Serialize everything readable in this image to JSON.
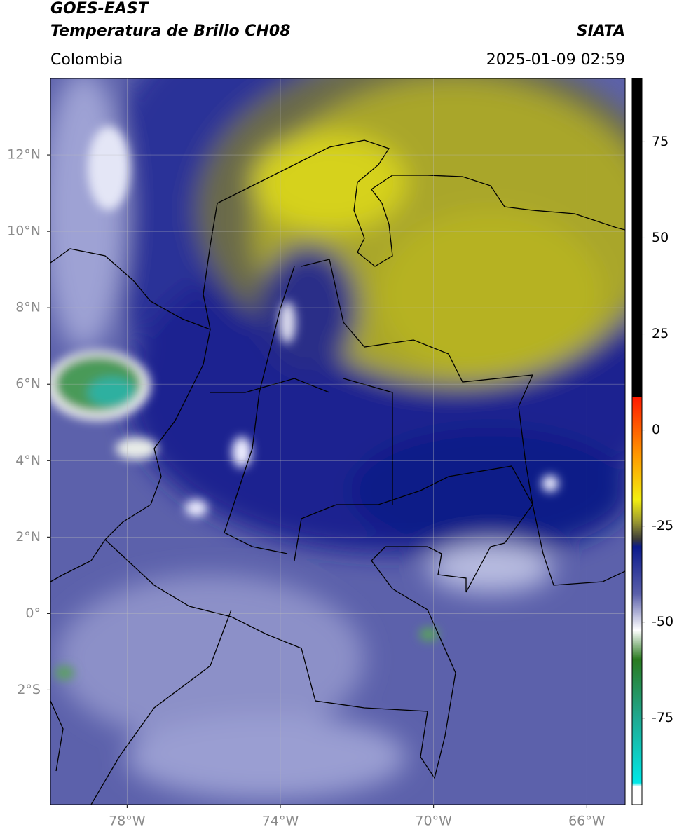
{
  "header": {
    "satellite": "GOES-EAST",
    "product": "Temperatura de Brillo CH08",
    "source": "SIATA",
    "region": "Colombia",
    "timestamp": "2025-01-09 02:59"
  },
  "map": {
    "xlim": [
      -80,
      -65
    ],
    "ylim": [
      -5,
      14
    ],
    "xticks": [
      {
        "value": -78,
        "label": "78°W"
      },
      {
        "value": -74,
        "label": "74°W"
      },
      {
        "value": -70,
        "label": "70°W"
      },
      {
        "value": -66,
        "label": "66°W"
      }
    ],
    "yticks": [
      {
        "value": 12,
        "label": "12°N"
      },
      {
        "value": 10,
        "label": "10°N"
      },
      {
        "value": 8,
        "label": "8°N"
      },
      {
        "value": 6,
        "label": "6°N"
      },
      {
        "value": 4,
        "label": "4°N"
      },
      {
        "value": 2,
        "label": "2°N"
      },
      {
        "value": 0,
        "label": "0°"
      },
      {
        "value": -2,
        "label": "2°S"
      }
    ],
    "grid": true
  },
  "colorbar": {
    "lim": [
      -97.5,
      91.5
    ],
    "ticks": [
      75,
      50,
      25,
      0,
      -25,
      -50,
      -75
    ]
  }
}
